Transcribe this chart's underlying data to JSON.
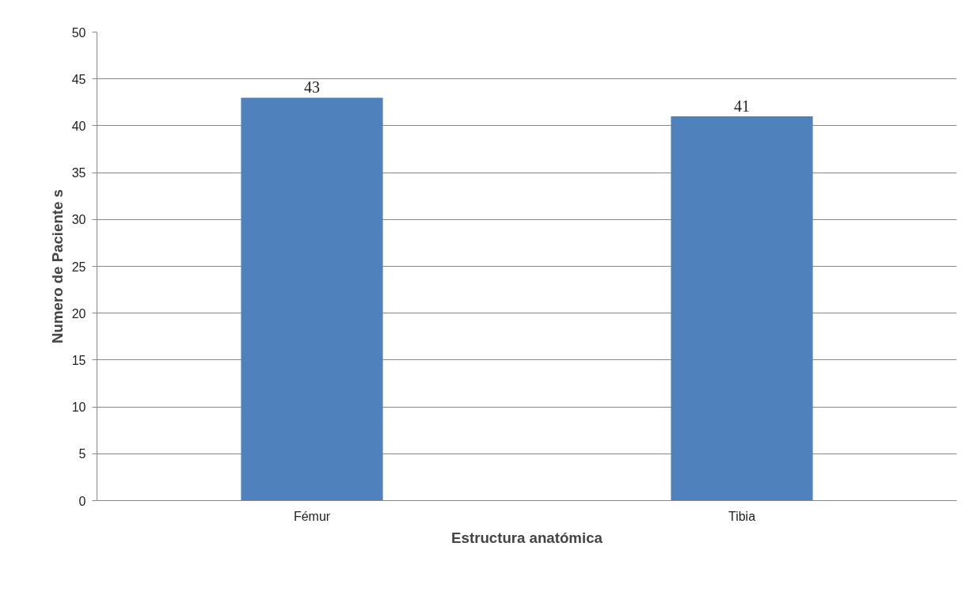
{
  "chart_data": {
    "type": "bar",
    "xlabel": "Estructura anatómica",
    "ylabel": "Numero de Paciente s",
    "categories": [
      "Fémur",
      "Tibia"
    ],
    "values": [
      43,
      41
    ],
    "color": "#4f81bd",
    "ylim": [
      0,
      50
    ],
    "yticks": [
      0,
      5,
      10,
      15,
      20,
      25,
      30,
      35,
      40,
      45,
      50
    ],
    "grid": "y",
    "data_labels": true
  }
}
